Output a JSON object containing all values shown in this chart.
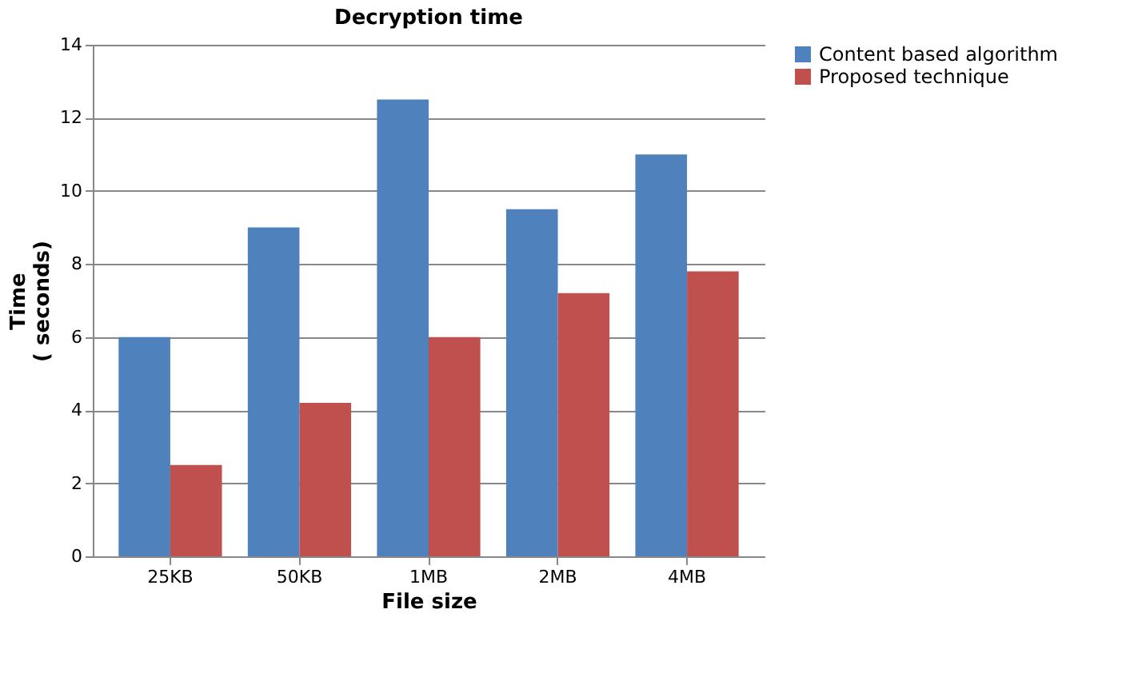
{
  "chart_data": {
    "type": "bar",
    "title": "Decryption time",
    "xlabel": "File size",
    "ylabel": "Time\n( seconds)",
    "categories": [
      "25KB",
      "50KB",
      "1MB",
      "2MB",
      "4MB"
    ],
    "series": [
      {
        "name": "Content based algorithm",
        "color": "#4f81bd",
        "values": [
          6,
          9,
          12.5,
          9.5,
          11
        ]
      },
      {
        "name": "Proposed technique",
        "color": "#c0504d",
        "values": [
          2.5,
          4.2,
          6,
          7.2,
          7.8
        ]
      }
    ],
    "ylim": [
      0,
      14
    ],
    "yticks": [
      0,
      2,
      4,
      6,
      8,
      10,
      12,
      14
    ],
    "grid": "y",
    "legend": "right"
  }
}
